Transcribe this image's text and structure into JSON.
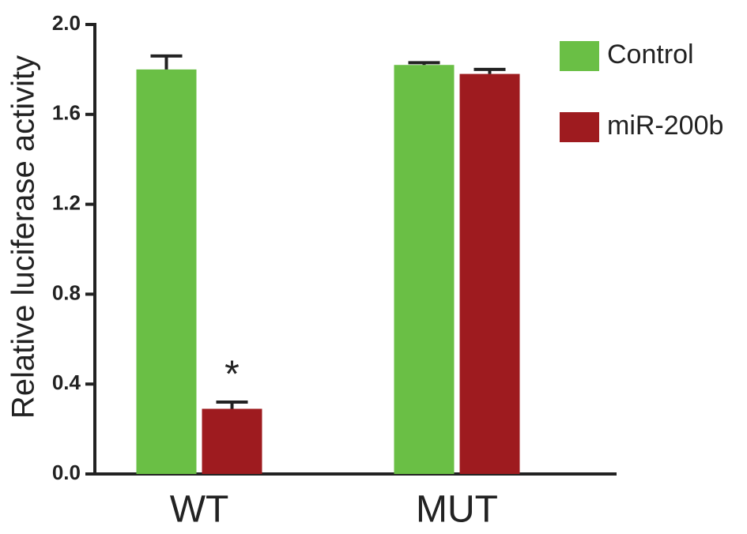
{
  "chart_data": {
    "type": "bar",
    "y_label": "Relative luciferase activity",
    "categories": [
      "WT",
      "MUT"
    ],
    "series": [
      {
        "name": "Control",
        "color": "#6abf45",
        "values": [
          1.8,
          1.82
        ],
        "errors": [
          0.06,
          0.01
        ]
      },
      {
        "name": "miR-200b",
        "color": "#9e1b1f",
        "values": [
          0.29,
          1.78
        ],
        "errors": [
          0.03,
          0.02
        ]
      }
    ],
    "ylim": [
      0,
      2
    ],
    "yticks": [
      {
        "value": 0,
        "label": "0.0"
      },
      0.4,
      0.8,
      1.2,
      1.6,
      {
        "value": 2,
        "label": "2.0"
      }
    ],
    "annotations": [
      {
        "text": "*",
        "category": "WT",
        "series": "miR-200b"
      }
    ],
    "legend": "right"
  }
}
